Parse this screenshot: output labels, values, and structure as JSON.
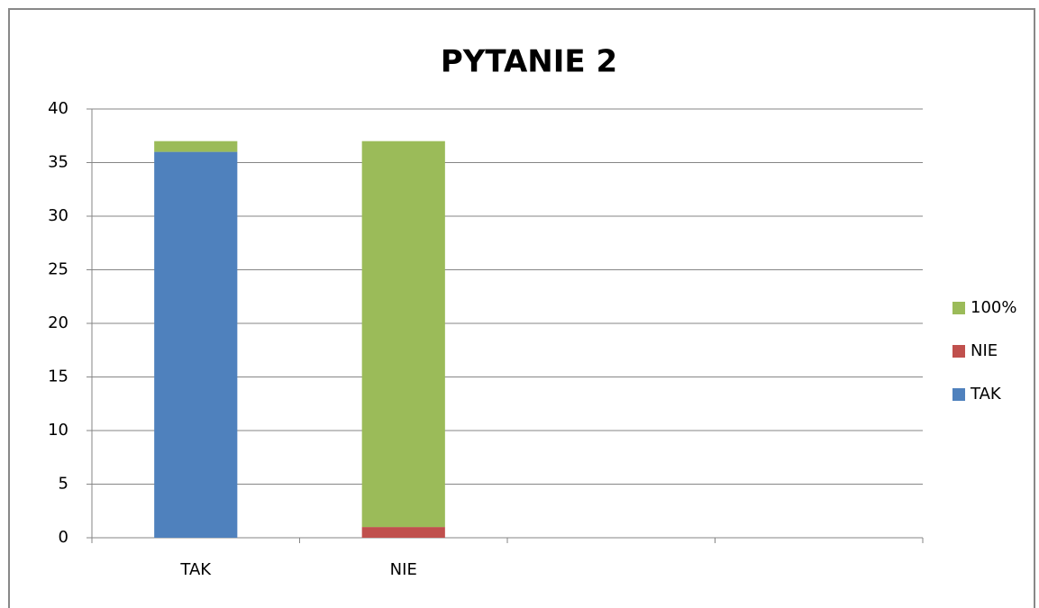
{
  "chart_data": {
    "type": "stacked_bar",
    "title": "PYTANIE 2",
    "categories": [
      "TAK",
      "NIE",
      null,
      null
    ],
    "series": [
      {
        "name": "TAK",
        "color": "#4f81bd",
        "values": [
          36,
          0,
          null,
          null
        ]
      },
      {
        "name": "NIE",
        "color": "#c0504d",
        "values": [
          0,
          1,
          null,
          null
        ]
      },
      {
        "name": "100%",
        "color": "#9bbb59",
        "values": [
          1,
          36,
          null,
          null
        ]
      }
    ],
    "ylim": [
      0,
      40
    ],
    "yticks": [
      0,
      5,
      10,
      15,
      20,
      25,
      30,
      35,
      40
    ],
    "grid": true,
    "legend": "right"
  }
}
